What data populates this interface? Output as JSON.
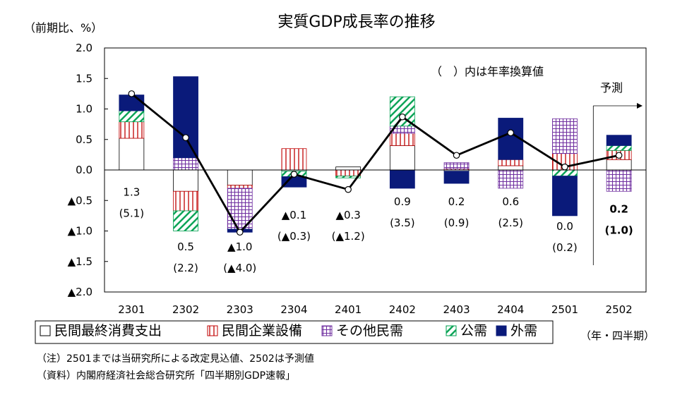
{
  "chart_data": {
    "type": "bar",
    "title": "実質GDP成長率の推移",
    "ylabel": "（前期比、%）",
    "xlabel": "（年・四半期）",
    "ylim": [
      -2.0,
      2.0
    ],
    "y_tick_labels": [
      "2.0",
      "1.5",
      "1.0",
      "0.5",
      "0.0",
      "▲0.5",
      "▲1.0",
      "▲1.5",
      "▲2.0"
    ],
    "y_tick_values": [
      2.0,
      1.5,
      1.0,
      0.5,
      0.0,
      -0.5,
      -1.0,
      -1.5,
      -2.0
    ],
    "categories": [
      "2301",
      "2302",
      "2303",
      "2304",
      "2401",
      "2402",
      "2403",
      "2404",
      "2501",
      "2502"
    ],
    "stacked": true,
    "series": [
      {
        "name": "民間最終消費支出",
        "pattern": "plain",
        "color": "#000000",
        "values": [
          0.52,
          -0.35,
          -0.25,
          -0.02,
          0.05,
          0.4,
          -0.02,
          0.07,
          0.0,
          0.17
        ]
      },
      {
        "name": "民間企業設備",
        "pattern": "vlines",
        "color": "#c00000",
        "values": [
          0.27,
          -0.32,
          -0.05,
          0.35,
          -0.1,
          0.2,
          0.02,
          0.1,
          0.27,
          0.15
        ]
      },
      {
        "name": "その他民需",
        "pattern": "grid",
        "color": "#7030a0",
        "values": [
          0.0,
          0.2,
          -0.67,
          0.0,
          0.0,
          0.12,
          0.1,
          -0.3,
          0.57,
          -0.35
        ]
      },
      {
        "name": "公需",
        "pattern": "diag",
        "color": "#00a050",
        "values": [
          0.18,
          -0.33,
          0.0,
          -0.09,
          -0.03,
          0.48,
          0.0,
          0.0,
          -0.1,
          0.08
        ]
      },
      {
        "name": "外需",
        "pattern": "solid",
        "color": "#0a1a7a",
        "values": [
          0.26,
          1.33,
          -0.05,
          -0.17,
          0.0,
          -0.3,
          -0.2,
          0.68,
          -0.65,
          0.17
        ]
      }
    ],
    "total_line": {
      "name": "実質GDP",
      "values": [
        1.25,
        0.53,
        -1.02,
        -0.07,
        -0.32,
        0.87,
        0.24,
        0.61,
        0.05,
        0.24
      ]
    },
    "data_labels": [
      {
        "category": "2301",
        "growth": "1.3",
        "annualized": "(5.1)",
        "y_anchor": -0.42,
        "bold": false
      },
      {
        "category": "2302",
        "growth": "0.5",
        "annualized": "(2.2)",
        "y_anchor": -1.32,
        "bold": false
      },
      {
        "category": "2303",
        "growth": "▲1.0",
        "annualized": "(▲4.0)",
        "y_anchor": -1.32,
        "bold": false
      },
      {
        "category": "2304",
        "growth": "▲0.1",
        "annualized": "(▲0.3)",
        "y_anchor": -0.8,
        "bold": false
      },
      {
        "category": "2401",
        "growth": "▲0.3",
        "annualized": "(▲1.2)",
        "y_anchor": -0.8,
        "bold": false
      },
      {
        "category": "2402",
        "growth": "0.9",
        "annualized": "(3.5)",
        "y_anchor": -0.58,
        "bold": false
      },
      {
        "category": "2403",
        "growth": "0.2",
        "annualized": "(0.9)",
        "y_anchor": -0.58,
        "bold": false
      },
      {
        "category": "2404",
        "growth": "0.6",
        "annualized": "(2.5)",
        "y_anchor": -0.58,
        "bold": false
      },
      {
        "category": "2501",
        "growth": "0.0",
        "annualized": "(0.2)",
        "y_anchor": -0.98,
        "bold": false
      },
      {
        "category": "2502",
        "growth": "0.2",
        "annualized": "(1.0)",
        "y_anchor": -0.7,
        "bold": true
      }
    ],
    "forecast_start_category": "2502",
    "grid": false,
    "legend_position": "bottom"
  },
  "annotations": {
    "annual_rate_note": "（　）内は年率換算値",
    "forecast_label": "予測"
  },
  "notes": [
    "（注）2501までは当研究所による改定見込値、2502は予測値",
    "（資料）内閣府経済社会総合研究所「四半期別GDP速報」"
  ],
  "legend_items": [
    {
      "symbol": "□",
      "label": "民間最終消費支出"
    },
    {
      "symbol": "▥",
      "label": "民間企業設備"
    },
    {
      "symbol": "▦",
      "label": "その他民需"
    },
    {
      "symbol": "▨",
      "label": "公需"
    },
    {
      "symbol": "■",
      "label": "外需"
    }
  ]
}
